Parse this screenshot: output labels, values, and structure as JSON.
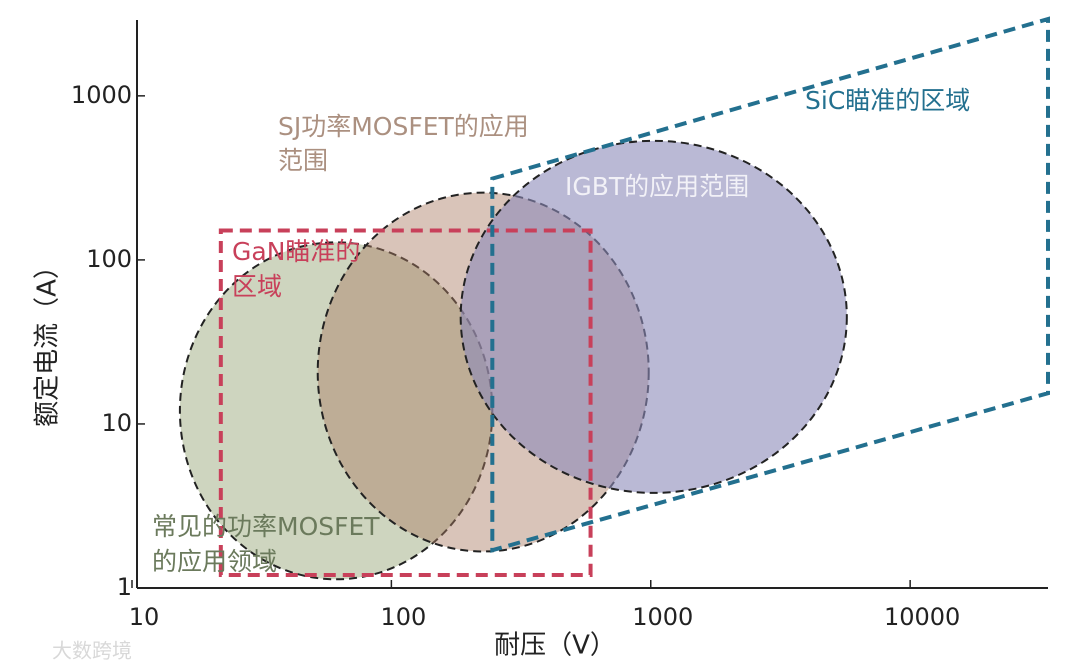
{
  "chart_data": {
    "type": "region",
    "x_label": "耐压（V）",
    "y_label": "额定电流（A）",
    "watermark": "大数跨境",
    "log_x": true,
    "log_y": true,
    "xlim": [
      10,
      34000
    ],
    "ylim": [
      1,
      2900
    ],
    "xticks": [
      10,
      100,
      1000,
      10000
    ],
    "yticks": [
      1,
      10,
      100,
      1000
    ],
    "regions": [
      {
        "label": [
          "常见的功率MOSFET",
          "的应用领域"
        ],
        "shape": "ellipse",
        "x": [
          15.3,
          245
        ],
        "y": [
          1.13,
          128
        ],
        "fill": "rgba(165,178,138,0.55)",
        "stroke": "#222",
        "label_color": "#6b7a5c"
      },
      {
        "label": [
          "SJ功率MOSFET的应用",
          "范围"
        ],
        "shape": "ellipse",
        "x": [
          52,
          982
        ],
        "y": [
          1.67,
          257
        ],
        "fill": "rgba(170,125,100,0.45)",
        "stroke": "#222",
        "label_color": "#ab9080"
      },
      {
        "label": [
          "IGBT的应用范围"
        ],
        "shape": "ellipse",
        "x": [
          185,
          5700
        ],
        "y": [
          3.8,
          532
        ],
        "fill": "rgba(140,138,185,0.6)",
        "stroke": "#222",
        "label_color": "#f2f1f7"
      },
      {
        "label": [
          "GaN瞄准的",
          "区域"
        ],
        "shape": "rect",
        "x": [
          22,
          586
        ],
        "y": [
          1.2,
          151
        ],
        "fill": "none",
        "stroke": "#c8405a",
        "label_color": "#c8405a"
      },
      {
        "label": [
          "SiC瞄准的区域"
        ],
        "shape": "polygon",
        "x": [
          245,
          34000,
          34000,
          245
        ],
        "y": [
          313,
          2940,
          15.4,
          1.7
        ],
        "fill": "none",
        "stroke": "#23708f",
        "label_color": "#23708f"
      }
    ]
  }
}
